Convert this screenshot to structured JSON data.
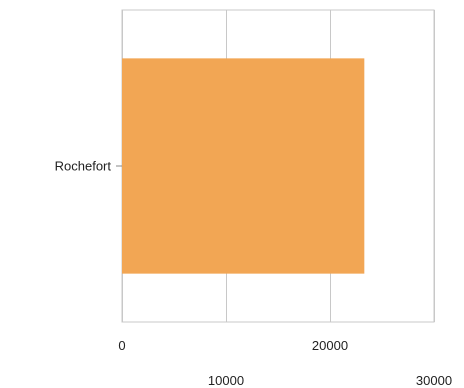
{
  "chart_data": {
    "type": "bar",
    "orientation": "horizontal",
    "categories": [
      "Rochefort"
    ],
    "values": [
      23300
    ],
    "xlim": [
      0,
      30000
    ],
    "x_ticks": [
      0,
      10000,
      20000,
      30000
    ],
    "x_tick_labels": [
      "0",
      "10000",
      "20000",
      "30000"
    ],
    "title": "",
    "xlabel": "",
    "ylabel": "",
    "grid": true,
    "legend": "none",
    "colors": {
      "bar": "#f2a654",
      "grid": "#c8c8c8",
      "frame": "#c8c8c8",
      "text": "#222222"
    }
  }
}
